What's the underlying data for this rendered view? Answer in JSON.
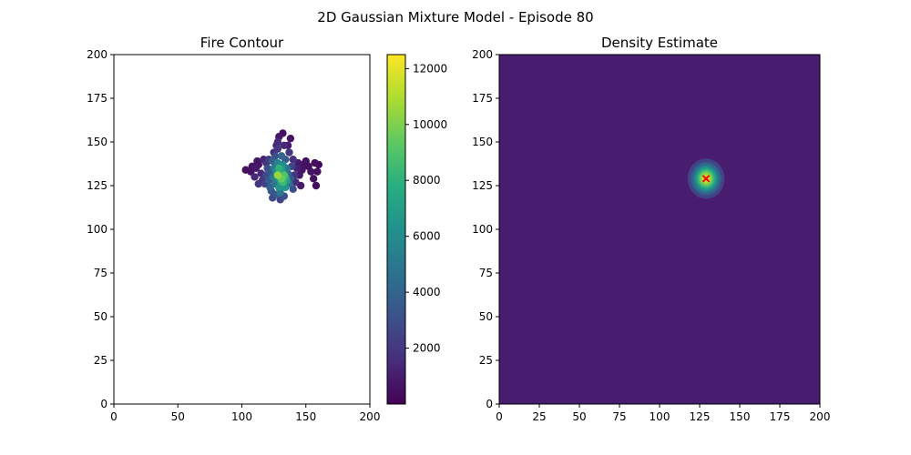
{
  "figure": {
    "suptitle": "2D Gaussian Mixture Model - Episode 80"
  },
  "chart_data": [
    {
      "type": "scatter",
      "title": "Fire Contour",
      "xlabel": "",
      "ylabel": "",
      "xlim": [
        0,
        200
      ],
      "ylim": [
        0,
        200
      ],
      "xticks": [
        "0",
        "50",
        "100",
        "150",
        "200"
      ],
      "yticks": [
        "0",
        "25",
        "50",
        "75",
        "100",
        "125",
        "150",
        "175",
        "200"
      ],
      "grid": false,
      "colormap": "viridis",
      "colorbar": {
        "range": [
          0,
          12500
        ],
        "ticks": [
          "2000",
          "4000",
          "6000",
          "8000",
          "10000",
          "12000"
        ],
        "tick_values": [
          2000,
          4000,
          6000,
          8000,
          10000,
          12000
        ]
      },
      "points": [
        [
          103,
          134,
          500
        ],
        [
          107,
          133,
          600
        ],
        [
          108,
          136,
          700
        ],
        [
          111,
          135,
          900
        ],
        [
          113,
          137,
          600
        ],
        [
          115,
          132,
          1500
        ],
        [
          116,
          128,
          2000
        ],
        [
          113,
          126,
          1800
        ],
        [
          118,
          126,
          2500
        ],
        [
          119,
          131,
          2800
        ],
        [
          120,
          135,
          3000
        ],
        [
          121,
          128,
          3500
        ],
        [
          122,
          124,
          4000
        ],
        [
          122,
          133,
          3200
        ],
        [
          124,
          139,
          3800
        ],
        [
          124,
          130,
          4500
        ],
        [
          125,
          135,
          5000
        ],
        [
          126,
          126,
          4800
        ],
        [
          126,
          142,
          3000
        ],
        [
          127,
          120,
          3500
        ],
        [
          127,
          133,
          6000
        ],
        [
          128,
          138,
          5500
        ],
        [
          128,
          146,
          2000
        ],
        [
          128,
          150,
          1500
        ],
        [
          129,
          153,
          800
        ],
        [
          129,
          124,
          6500
        ],
        [
          130,
          128,
          7500
        ],
        [
          130,
          117,
          2500
        ],
        [
          131,
          134,
          7000
        ],
        [
          131,
          142,
          4000
        ],
        [
          132,
          127,
          8500
        ],
        [
          132,
          137,
          6000
        ],
        [
          133,
          131,
          9000
        ],
        [
          133,
          148,
          1500
        ],
        [
          134,
          124,
          6500
        ],
        [
          134,
          140,
          3500
        ],
        [
          135,
          128,
          7000
        ],
        [
          135,
          135,
          5000
        ],
        [
          136,
          132,
          4000
        ],
        [
          137,
          126,
          4500
        ],
        [
          137,
          144,
          2000
        ],
        [
          138,
          129,
          3500
        ],
        [
          138,
          152,
          700
        ],
        [
          139,
          136,
          2500
        ],
        [
          140,
          123,
          3000
        ],
        [
          140,
          140,
          1800
        ],
        [
          141,
          131,
          2000
        ],
        [
          142,
          127,
          1500
        ],
        [
          143,
          135,
          1200
        ],
        [
          144,
          138,
          900
        ],
        [
          145,
          131,
          800
        ],
        [
          146,
          125,
          1000
        ],
        [
          147,
          134,
          700
        ],
        [
          148,
          137,
          600
        ],
        [
          150,
          139,
          500
        ],
        [
          152,
          136,
          500
        ],
        [
          154,
          133,
          600
        ],
        [
          156,
          129,
          500
        ],
        [
          158,
          125,
          400
        ],
        [
          159,
          133,
          500
        ],
        [
          160,
          137,
          400
        ],
        [
          157,
          138,
          450
        ],
        [
          123,
          122,
          3200
        ],
        [
          124,
          118,
          2800
        ],
        [
          125,
          144,
          1500
        ],
        [
          121,
          140,
          2200
        ],
        [
          119,
          138,
          1800
        ],
        [
          117,
          140,
          1200
        ],
        [
          128,
          131,
          10500
        ],
        [
          131,
          129,
          9500
        ],
        [
          129,
          135,
          8000
        ],
        [
          134,
          130,
          8000
        ],
        [
          126,
          129,
          5500
        ],
        [
          136,
          148,
          1000
        ],
        [
          132,
          155,
          600
        ],
        [
          127,
          148,
          1200
        ],
        [
          110,
          130,
          1500
        ],
        [
          112,
          139,
          700
        ],
        [
          130,
          121,
          5000
        ],
        [
          133,
          119,
          3000
        ]
      ]
    },
    {
      "type": "heatmap",
      "title": "Density Estimate",
      "xlabel": "",
      "ylabel": "",
      "xlim": [
        0,
        200
      ],
      "ylim": [
        0,
        200
      ],
      "xticks": [
        "0",
        "25",
        "50",
        "75",
        "100",
        "125",
        "150",
        "175",
        "200"
      ],
      "yticks": [
        "0",
        "25",
        "50",
        "75",
        "100",
        "125",
        "150",
        "175",
        "200"
      ],
      "grid": false,
      "colormap": "viridis",
      "gaussian": {
        "mean": [
          129,
          129
        ],
        "std": 5.5
      },
      "marker": {
        "x": 129,
        "y": 129,
        "symbol": "x",
        "color": "#ff0000"
      }
    }
  ]
}
